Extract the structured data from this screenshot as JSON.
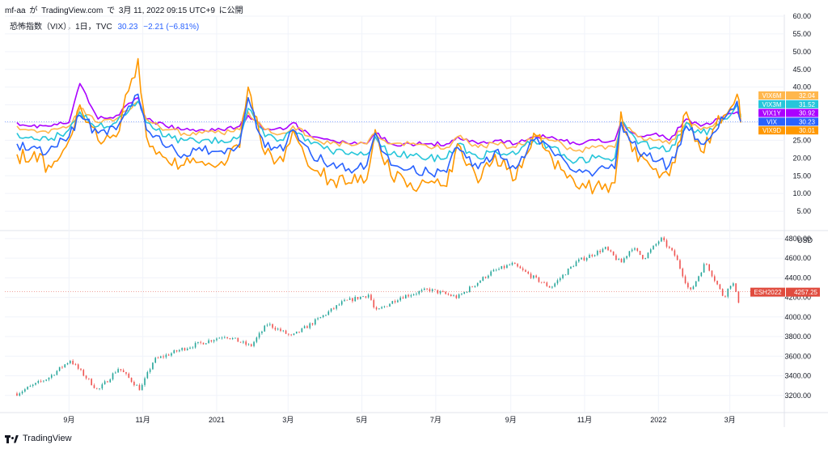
{
  "header": {
    "user": "mf-aa",
    "ga": "が",
    "site": "TradingView.com",
    "de": "で",
    "date": "3月 11, 2022 09:15 UTC+9",
    "published": "に公開"
  },
  "legend": {
    "symbol_text": "恐怖指数（VIX），1日，TVC",
    "last": "30.23",
    "change": "−2.21 (−6.81%)"
  },
  "footer": {
    "brand": "TradingView"
  },
  "colors": {
    "VIX": "#2962ff",
    "VIX9D": "#ff9800",
    "VIX3M": "#26c6da",
    "VIX6M": "#ffb74d",
    "VIX1Y": "#aa00ff",
    "up": "#26a69a",
    "down": "#ef5350",
    "es_label": "#e04b3e"
  },
  "chart_data": [
    {
      "type": "line",
      "x": [
        "2020-07-20",
        "2020-08-01",
        "2020-08-15",
        "2020-09-01",
        "2020-09-10",
        "2020-09-25",
        "2020-10-10",
        "2020-10-28",
        "2020-11-04",
        "2020-11-20",
        "2020-12-05",
        "2020-12-20",
        "2021-01-05",
        "2021-01-20",
        "2021-01-27",
        "2021-02-10",
        "2021-02-25",
        "2021-03-05",
        "2021-03-20",
        "2021-04-05",
        "2021-04-20",
        "2021-05-05",
        "2021-05-12",
        "2021-05-25",
        "2021-06-10",
        "2021-06-25",
        "2021-07-10",
        "2021-07-19",
        "2021-08-05",
        "2021-08-19",
        "2021-09-05",
        "2021-09-20",
        "2021-10-05",
        "2021-10-25",
        "2021-11-10",
        "2021-11-26",
        "2021-12-01",
        "2021-12-15",
        "2021-12-30",
        "2022-01-10",
        "2022-01-24",
        "2022-02-05",
        "2022-02-15",
        "2022-02-24",
        "2022-03-07",
        "2022-03-10"
      ],
      "series": [
        {
          "name": "VIX",
          "values": [
            24,
            23,
            22,
            26,
            32,
            27,
            28,
            38,
            28,
            23,
            21,
            22,
            22,
            24,
            37,
            23,
            22,
            28,
            21,
            18,
            17,
            18,
            27,
            18,
            17,
            16,
            16,
            23,
            17,
            22,
            17,
            25,
            22,
            16,
            16,
            17,
            30,
            22,
            19,
            18,
            29,
            24,
            27,
            31,
            36,
            30.23
          ]
        },
        {
          "name": "VIX9D",
          "values": [
            21,
            20,
            18,
            25,
            35,
            25,
            26,
            48,
            26,
            20,
            18,
            19,
            19,
            23,
            40,
            21,
            19,
            28,
            17,
            14,
            13,
            14,
            28,
            15,
            13,
            13,
            12,
            24,
            13,
            21,
            14,
            27,
            20,
            12,
            12,
            13,
            33,
            19,
            17,
            15,
            33,
            22,
            28,
            32,
            38,
            30.01
          ]
        },
        {
          "name": "VIX3M",
          "values": [
            27,
            26,
            25,
            28,
            33,
            29,
            30,
            36,
            30,
            26,
            25,
            25,
            25,
            26,
            34,
            26,
            25,
            28,
            24,
            22,
            21,
            21,
            26,
            21,
            21,
            20,
            20,
            24,
            20,
            22,
            21,
            25,
            23,
            19,
            20,
            20,
            30,
            24,
            23,
            22,
            30,
            27,
            28,
            31,
            35,
            31.52
          ]
        },
        {
          "name": "VIX6M",
          "values": [
            29,
            28,
            27,
            29,
            34,
            30,
            31,
            36,
            31,
            28,
            27,
            27,
            27,
            28,
            33,
            28,
            27,
            29,
            26,
            24,
            24,
            24,
            27,
            24,
            24,
            23,
            23,
            26,
            23,
            24,
            23,
            26,
            25,
            22,
            23,
            23,
            30,
            26,
            25,
            24,
            30,
            28,
            29,
            31,
            35,
            32.04
          ]
        },
        {
          "name": "VIX1Y",
          "values": [
            30,
            29,
            29,
            30,
            41,
            31,
            32,
            37,
            31,
            29,
            28,
            28,
            28,
            29,
            32,
            28,
            28,
            30,
            26,
            25,
            24,
            24,
            27,
            24,
            24,
            24,
            24,
            26,
            24,
            25,
            24,
            26,
            26,
            24,
            25,
            25,
            30,
            26,
            27,
            25,
            31,
            29,
            30,
            32,
            33,
            30.92
          ]
        }
      ],
      "y_ticks": [
        "60.00",
        "55.00",
        "50.00",
        "45.00",
        "40.00",
        "35.00",
        "30.00",
        "25.00",
        "20.00",
        "15.00",
        "10.00",
        "5.00"
      ],
      "ylim": [
        0,
        60
      ],
      "last_labels": [
        {
          "name": "VIX6M",
          "value": "32.04"
        },
        {
          "name": "VIX3M",
          "value": "31.52"
        },
        {
          "name": "VIX1Y",
          "value": "30.92"
        },
        {
          "name": "VIX",
          "value": "30.23"
        },
        {
          "name": "VIX9D",
          "value": "30.01"
        }
      ]
    },
    {
      "type": "candlestick",
      "name": "ESH2022",
      "last": "4257.25",
      "unit": "USD",
      "anchors": {
        "dates": [
          "2020-07-20",
          "2020-08-15",
          "2020-09-02",
          "2020-09-25",
          "2020-10-12",
          "2020-10-30",
          "2020-11-10",
          "2020-12-05",
          "2021-01-08",
          "2021-01-29",
          "2021-02-12",
          "2021-03-04",
          "2021-03-25",
          "2021-04-15",
          "2021-05-07",
          "2021-05-12",
          "2021-06-01",
          "2021-06-25",
          "2021-07-19",
          "2021-08-15",
          "2021-09-02",
          "2021-09-20",
          "2021-10-04",
          "2021-10-25",
          "2021-11-18",
          "2021-12-01",
          "2021-12-10",
          "2021-12-20",
          "2022-01-03",
          "2022-01-15",
          "2022-01-27",
          "2022-02-09",
          "2022-02-24",
          "2022-03-03",
          "2022-03-08",
          "2022-03-10"
        ],
        "values": [
          3220,
          3380,
          3560,
          3250,
          3480,
          3260,
          3560,
          3680,
          3810,
          3700,
          3930,
          3800,
          3970,
          4150,
          4230,
          4050,
          4200,
          4280,
          4200,
          4450,
          4540,
          4400,
          4300,
          4560,
          4700,
          4550,
          4710,
          4600,
          4800,
          4620,
          4250,
          4560,
          4200,
          4370,
          4150,
          4257.25
        ]
      },
      "y_ticks": [
        "4800.00",
        "4600.00",
        "4400.00",
        "4200.00",
        "4000.00",
        "3800.00",
        "3600.00",
        "3400.00",
        "3200.00"
      ],
      "ylim": [
        3000,
        4840
      ]
    }
  ],
  "x_axis": {
    "start": "2020-07-10",
    "end": "2022-04-15",
    "ticks": [
      {
        "label": "9月",
        "date": "2020-09-01"
      },
      {
        "label": "11月",
        "date": "2020-11-01"
      },
      {
        "label": "2021",
        "date": "2021-01-01"
      },
      {
        "label": "3月",
        "date": "2021-03-01"
      },
      {
        "label": "5月",
        "date": "2021-05-01"
      },
      {
        "label": "7月",
        "date": "2021-07-01"
      },
      {
        "label": "9月",
        "date": "2021-09-01"
      },
      {
        "label": "11月",
        "date": "2021-11-01"
      },
      {
        "label": "2022",
        "date": "2022-01-01"
      },
      {
        "label": "3月",
        "date": "2022-03-01"
      }
    ]
  }
}
